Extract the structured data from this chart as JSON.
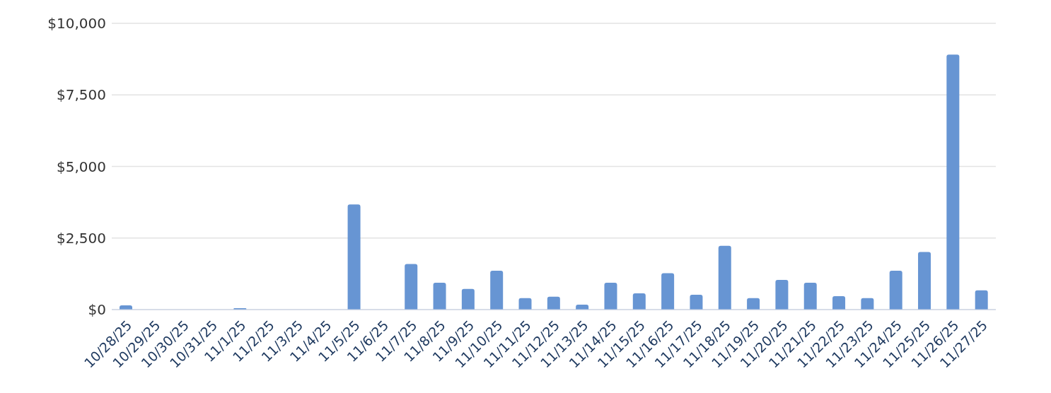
{
  "chart_data": {
    "type": "bar",
    "categories": [
      "10/28/25",
      "10/29/25",
      "10/30/25",
      "10/31/25",
      "11/1/25",
      "11/2/25",
      "11/3/25",
      "11/4/25",
      "11/5/25",
      "11/6/25",
      "11/7/25",
      "11/8/25",
      "11/9/25",
      "11/10/25",
      "11/11/25",
      "11/12/25",
      "11/13/25",
      "11/14/25",
      "11/15/25",
      "11/16/25",
      "11/17/25",
      "11/18/25",
      "11/19/25",
      "11/20/25",
      "11/21/25",
      "11/22/25",
      "11/23/25",
      "11/24/25",
      "11/25/25",
      "11/26/25",
      "11/27/25"
    ],
    "values": [
      150,
      0,
      0,
      0,
      50,
      0,
      0,
      0,
      3670,
      0,
      1590,
      940,
      720,
      1360,
      400,
      450,
      170,
      940,
      570,
      1270,
      520,
      2230,
      400,
      1040,
      940,
      470,
      400,
      1360,
      2010,
      8910,
      670
    ],
    "color": "#6795d3",
    "ylim": [
      0,
      10000
    ],
    "yticks": [
      {
        "value": 0,
        "label": "$0"
      },
      {
        "value": 2500,
        "label": "$2,500"
      },
      {
        "value": 5000,
        "label": "$5,000"
      },
      {
        "value": 7500,
        "label": "$7,500"
      },
      {
        "value": 10000,
        "label": "$10,000"
      }
    ],
    "grid": "y"
  }
}
